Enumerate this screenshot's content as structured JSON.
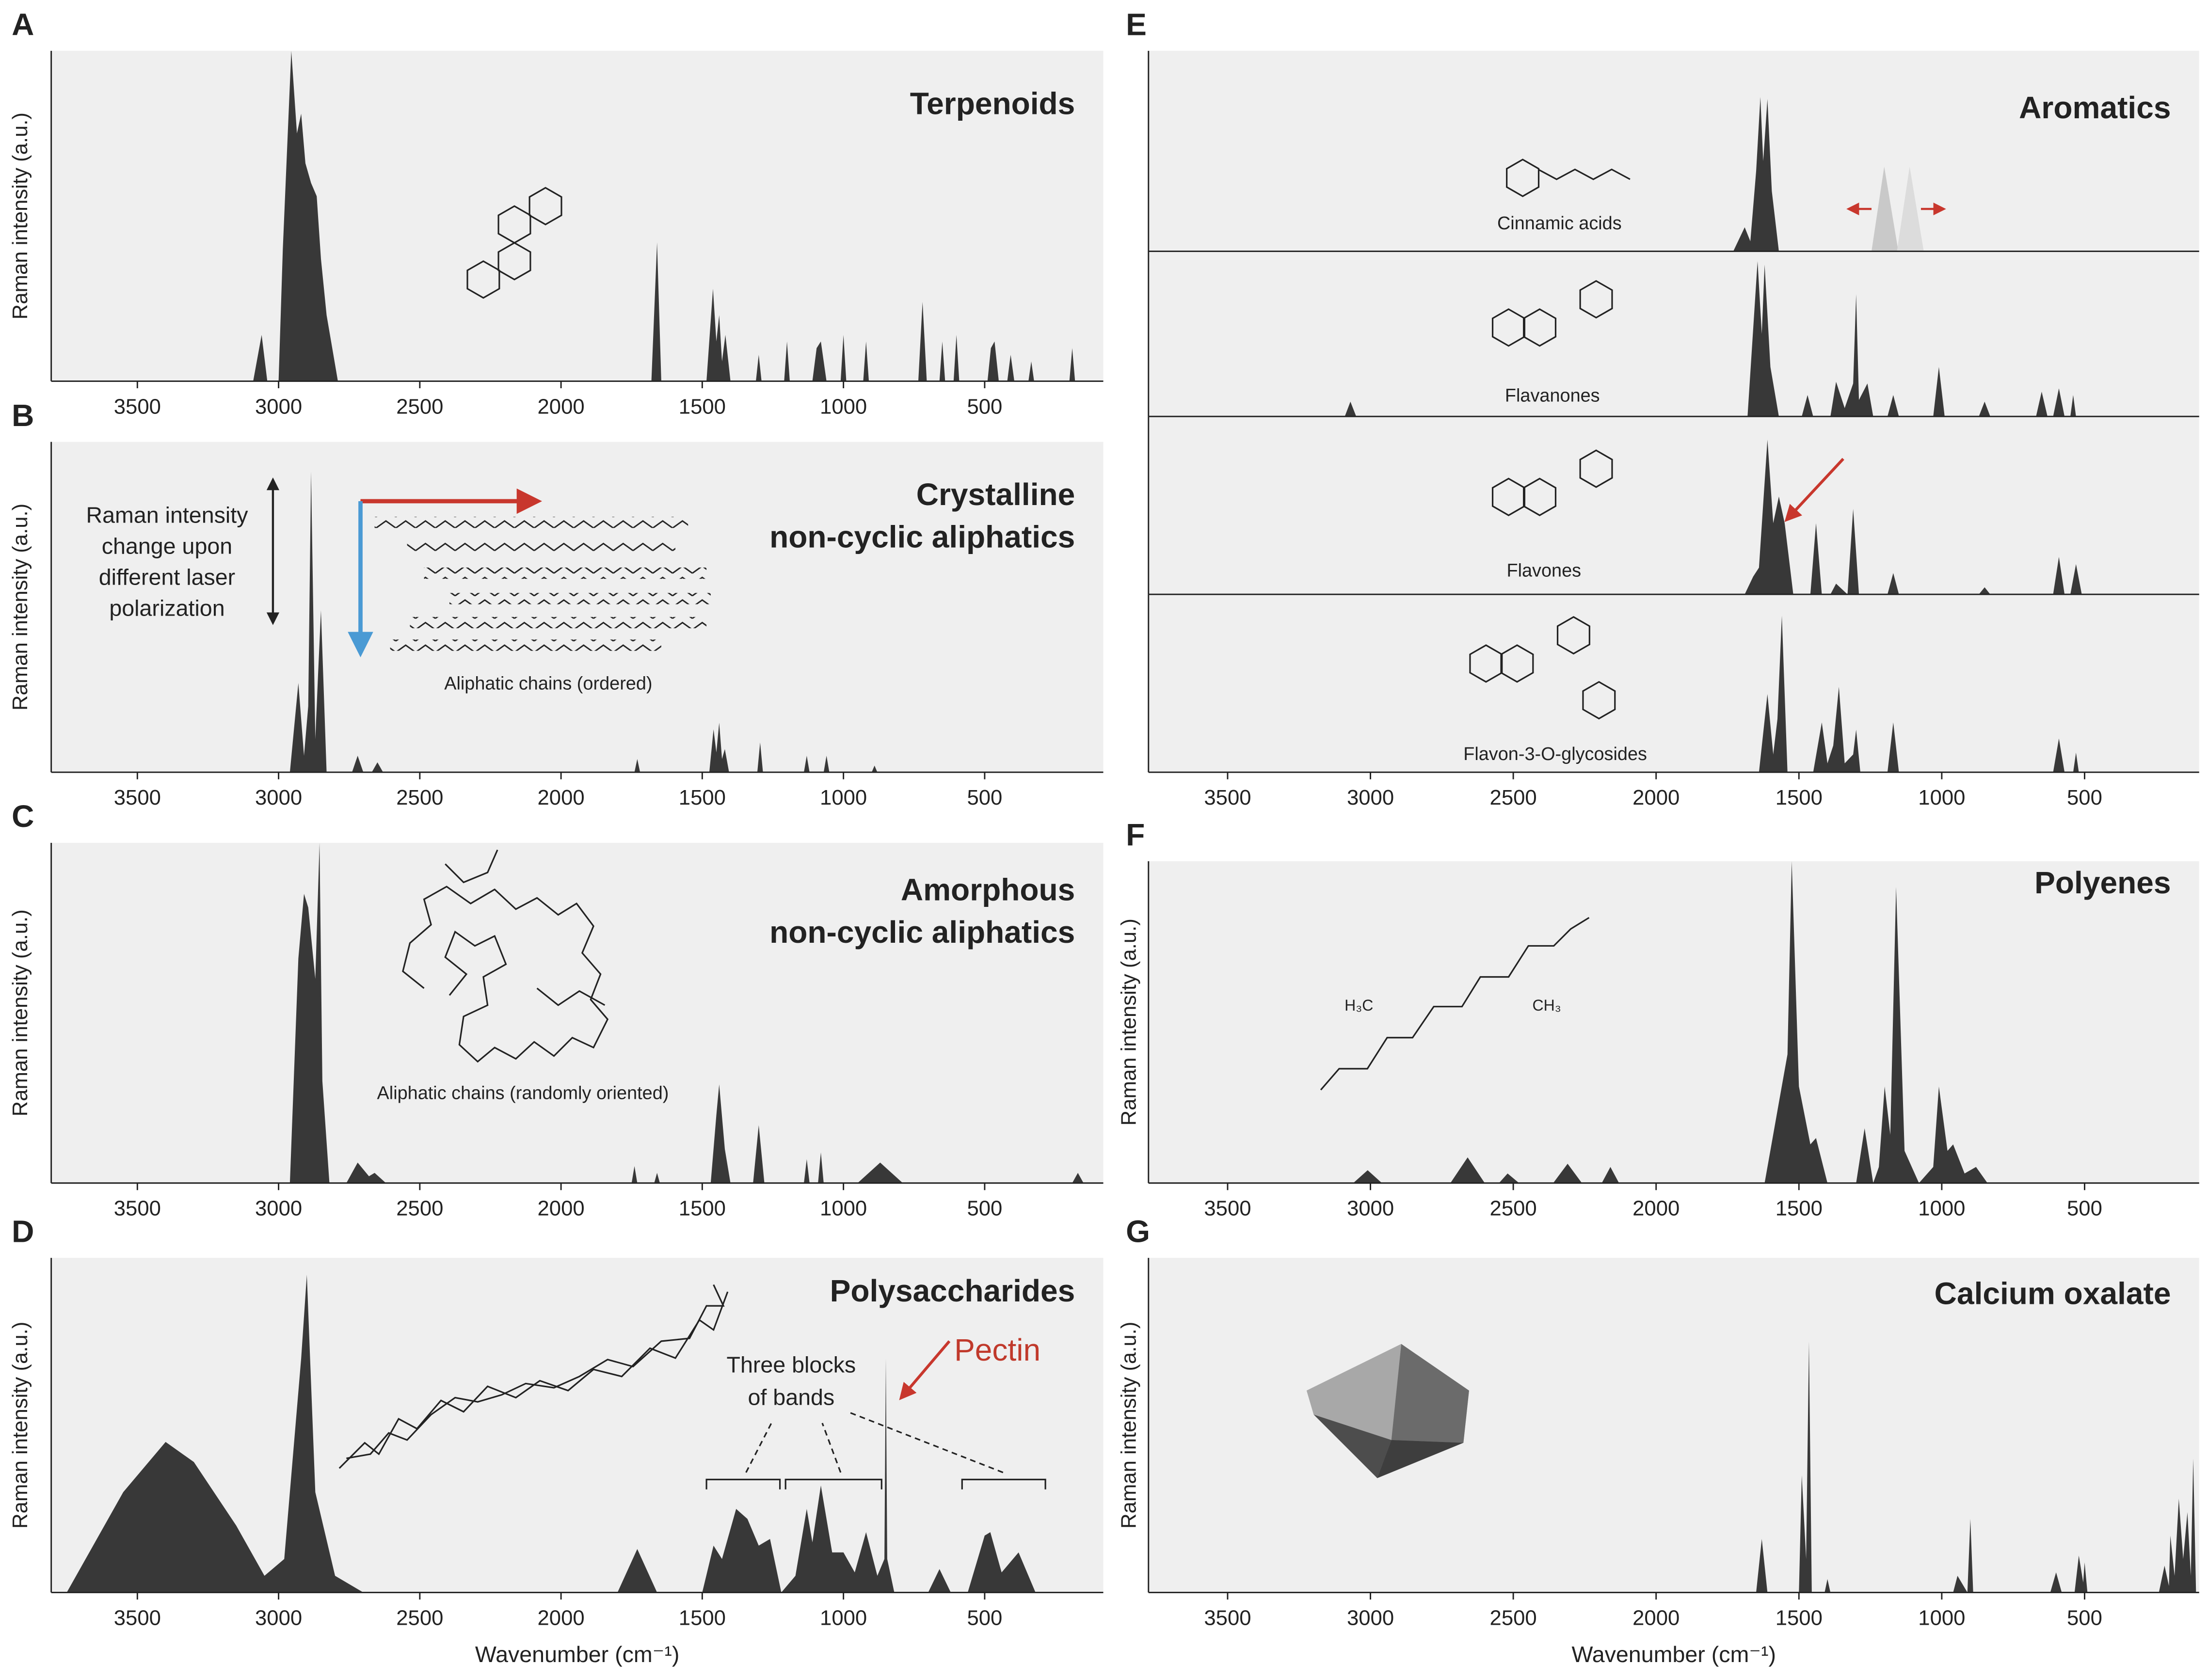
{
  "chart_data": [
    {
      "type": "area",
      "panel": "A",
      "title": "Terpenoids",
      "ylabel": "Raman intensity (a.u.)",
      "color": "#383838",
      "x": [
        3090,
        3060,
        3040,
        3000,
        2985,
        2970,
        2955,
        2935,
        2920,
        2905,
        2885,
        2865,
        2850,
        2830,
        2790,
        1680,
        1660,
        1645,
        1485,
        1462,
        1450,
        1440,
        1430,
        1418,
        1400,
        1310,
        1300,
        1290,
        1210,
        1200,
        1190,
        1110,
        1095,
        1080,
        1060,
        1010,
        1000,
        990,
        930,
        920,
        910,
        735,
        720,
        705,
        660,
        650,
        640,
        610,
        600,
        590,
        490,
        478,
        465,
        450,
        420,
        408,
        395,
        345,
        335,
        325,
        200,
        190,
        180
      ],
      "values": [
        0,
        14,
        0,
        0,
        40,
        70,
        100,
        75,
        81,
        66,
        60,
        56,
        37,
        20,
        0,
        0,
        42,
        0,
        0,
        28,
        12,
        20,
        6,
        14,
        0,
        0,
        8,
        0,
        0,
        12,
        0,
        0,
        10,
        12,
        0,
        0,
        14,
        0,
        0,
        12,
        0,
        0,
        24,
        0,
        0,
        12,
        0,
        0,
        14,
        0,
        0,
        10,
        12,
        0,
        0,
        8,
        0,
        0,
        6,
        0,
        0,
        10,
        0
      ],
      "xlim": [
        3805,
        80
      ],
      "xticks": [
        3500,
        3000,
        2500,
        2000,
        1500,
        1000,
        500
      ],
      "ylim": [
        0,
        100
      ]
    },
    {
      "type": "area",
      "panel": "B",
      "title": [
        "Crystalline",
        "non-cyclic aliphatics"
      ],
      "ylabel": "Raman intensity (a.u.)",
      "color": "#383838",
      "annotations": [
        {
          "text": "Raman intensity"
        },
        {
          "text": "change upon"
        },
        {
          "text": "different laser"
        },
        {
          "text": "polarization"
        },
        {
          "text": "Aliphatic chains (ordered)"
        }
      ],
      "x": [
        2960,
        2930,
        2910,
        2895,
        2885,
        2870,
        2860,
        2850,
        2830,
        2740,
        2720,
        2700,
        2670,
        2650,
        2630,
        1740,
        1730,
        1720,
        1475,
        1460,
        1450,
        1440,
        1430,
        1420,
        1405,
        1305,
        1295,
        1285,
        1140,
        1130,
        1120,
        1070,
        1060,
        1050,
        900,
        890,
        880
      ],
      "values": [
        0,
        27,
        5,
        20,
        91,
        10,
        30,
        49,
        0,
        0,
        5,
        0,
        0,
        3,
        0,
        0,
        4,
        0,
        0,
        13,
        6,
        15,
        4,
        7,
        0,
        0,
        9,
        0,
        0,
        5,
        0,
        0,
        5,
        0,
        0,
        2,
        0
      ],
      "xlim": [
        3805,
        80
      ],
      "xticks": [
        3500,
        3000,
        2500,
        2000,
        1500,
        1000,
        500
      ],
      "ylim": [
        0,
        100
      ]
    },
    {
      "type": "area",
      "panel": "C",
      "title": [
        "Amorphous",
        "non-cyclic aliphatics"
      ],
      "ylabel": "Raman intensity (a.u.)",
      "color": "#383838",
      "annotations": [
        {
          "text": "Aliphatic chains (randomly oriented)"
        }
      ],
      "x": [
        2960,
        2930,
        2910,
        2895,
        2870,
        2855,
        2845,
        2820,
        2760,
        2720,
        2680,
        2660,
        2620,
        1750,
        1740,
        1730,
        1670,
        1660,
        1650,
        1470,
        1450,
        1440,
        1420,
        1400,
        1320,
        1300,
        1280,
        1140,
        1130,
        1120,
        1090,
        1080,
        1070,
        950,
        870,
        790,
        190,
        170,
        150
      ],
      "values": [
        0,
        66,
        85,
        81,
        60,
        100,
        30,
        0,
        0,
        6,
        2,
        3,
        0,
        0,
        5,
        0,
        0,
        3,
        0,
        0,
        20,
        29,
        10,
        0,
        0,
        17,
        0,
        0,
        7,
        0,
        0,
        9,
        0,
        0,
        6,
        0,
        0,
        3,
        0
      ],
      "xlim": [
        3805,
        80
      ],
      "xticks": [
        3500,
        3000,
        2500,
        2000,
        1500,
        1000,
        500
      ],
      "ylim": [
        0,
        100
      ]
    },
    {
      "type": "area",
      "panel": "D",
      "title": "Polysaccharides",
      "ylabel": "Raman intensity (a.u.)",
      "xlabel": "Wavenumber (cm⁻¹)",
      "color": "#383838",
      "annotations": [
        {
          "text": "Three blocks"
        },
        {
          "text": "of bands"
        },
        {
          "text": "Pectin",
          "color": "#c0392b"
        }
      ],
      "x": [
        3750,
        3550,
        3400,
        3300,
        3150,
        3050,
        2980,
        2940,
        2920,
        2900,
        2870,
        2800,
        2700,
        1800,
        1730,
        1660,
        1500,
        1460,
        1430,
        1380,
        1340,
        1300,
        1260,
        1220,
        1170,
        1130,
        1110,
        1080,
        1040,
        1000,
        960,
        920,
        880,
        855,
        850,
        845,
        820,
        700,
        660,
        620,
        560,
        500,
        480,
        440,
        380,
        320
      ],
      "values": [
        0,
        30,
        45,
        39,
        20,
        5,
        10,
        50,
        70,
        95,
        30,
        5,
        0,
        0,
        13,
        0,
        0,
        14,
        10,
        25,
        22,
        14,
        16,
        0,
        5,
        25,
        15,
        32,
        12,
        12,
        6,
        18,
        5,
        10,
        70,
        10,
        0,
        0,
        7,
        0,
        0,
        17,
        18,
        6,
        12,
        0
      ],
      "xlim": [
        3805,
        80
      ],
      "xticks": [
        3500,
        3000,
        2500,
        2000,
        1500,
        1000,
        500
      ],
      "ylim": [
        0,
        100
      ]
    },
    {
      "type": "area",
      "panel": "E",
      "title": "Aromatics",
      "color": "#383838",
      "annotations": [
        {
          "text": "Cinnamic acids"
        }
      ],
      "x": [
        1730,
        1690,
        1670,
        1650,
        1635,
        1625,
        1610,
        1595,
        1570
      ],
      "values": [
        0,
        12,
        5,
        40,
        77,
        45,
        76,
        30,
        0
      ],
      "xlim": [
        3777,
        99
      ],
      "ylim": [
        0,
        100
      ]
    },
    {
      "type": "area",
      "color": "#383838",
      "annotations": [
        {
          "text": "Flavanones"
        }
      ],
      "x": [
        3090,
        3070,
        3050,
        1680,
        1645,
        1630,
        1620,
        1600,
        1570,
        1490,
        1470,
        1450,
        1390,
        1370,
        1340,
        1310,
        1300,
        1290,
        1260,
        1240,
        1190,
        1170,
        1150,
        1030,
        1010,
        990,
        870,
        850,
        830,
        670,
        650,
        630,
        610,
        590,
        570,
        550,
        540,
        530
      ],
      "values": [
        0,
        9,
        0,
        0,
        94,
        50,
        92,
        30,
        0,
        0,
        13,
        0,
        0,
        21,
        5,
        20,
        74,
        10,
        20,
        0,
        0,
        13,
        0,
        0,
        30,
        0,
        0,
        9,
        0,
        0,
        15,
        0,
        0,
        17,
        0,
        0,
        13,
        0
      ],
      "xlim": [
        3777,
        99
      ],
      "ylim": [
        0,
        100
      ]
    },
    {
      "type": "area",
      "color": "#383838",
      "annotations": [
        {
          "text": "Flavones"
        }
      ],
      "x": [
        1690,
        1660,
        1640,
        1610,
        1590,
        1570,
        1550,
        1520,
        1460,
        1440,
        1420,
        1390,
        1370,
        1330,
        1310,
        1290,
        1190,
        1170,
        1150,
        870,
        850,
        830,
        610,
        590,
        570,
        550,
        530,
        510
      ],
      "values": [
        0,
        10,
        15,
        87,
        40,
        55,
        40,
        0,
        0,
        40,
        0,
        0,
        6,
        0,
        48,
        0,
        0,
        12,
        0,
        0,
        4,
        0,
        0,
        21,
        0,
        0,
        17,
        0
      ],
      "xlim": [
        3777,
        99
      ],
      "ylim": [
        0,
        100
      ]
    },
    {
      "type": "area",
      "color": "#383838",
      "annotations": [
        {
          "text": "Flavon-3-O-glycosides"
        }
      ],
      "x": [
        1640,
        1610,
        1590,
        1575,
        1560,
        1540,
        1450,
        1420,
        1400,
        1380,
        1360,
        1340,
        1310,
        1300,
        1285,
        1190,
        1170,
        1150,
        610,
        590,
        570,
        540,
        530,
        520
      ],
      "values": [
        0,
        44,
        10,
        30,
        88,
        0,
        0,
        28,
        5,
        15,
        48,
        5,
        10,
        24,
        0,
        0,
        28,
        0,
        0,
        19,
        0,
        0,
        11,
        0
      ],
      "xlim": [
        3777,
        99
      ],
      "xticks": [
        3500,
        3000,
        2500,
        2000,
        1500,
        1000,
        500
      ],
      "ylim": [
        0,
        100
      ]
    },
    {
      "type": "area",
      "panel": "F",
      "title": "Polyenes",
      "ylabel": "Raman intensity (a.u.)",
      "color": "#383838",
      "annotations": [
        {
          "text": "H₃C"
        },
        {
          "text": "CH₃"
        }
      ],
      "x": [
        3060,
        3010,
        2960,
        2720,
        2660,
        2600,
        2550,
        2520,
        2480,
        2360,
        2310,
        2260,
        2190,
        2160,
        2130,
        1620,
        1570,
        1540,
        1525,
        1500,
        1460,
        1440,
        1400,
        1300,
        1270,
        1240,
        1220,
        1200,
        1180,
        1160,
        1130,
        1080,
        1030,
        1010,
        980,
        960,
        920,
        880,
        840
      ],
      "values": [
        0,
        4,
        0,
        0,
        8,
        0,
        0,
        3,
        0,
        0,
        6,
        0,
        0,
        5,
        0,
        0,
        25,
        40,
        100,
        30,
        12,
        14,
        0,
        0,
        17,
        0,
        5,
        30,
        15,
        92,
        10,
        0,
        5,
        30,
        10,
        12,
        3,
        5,
        0
      ],
      "xlim": [
        3777,
        99
      ],
      "xticks": [
        3500,
        3000,
        2500,
        2000,
        1500,
        1000,
        500
      ],
      "ylim": [
        0,
        100
      ]
    },
    {
      "type": "area",
      "panel": "G",
      "title": "Calcium oxalate",
      "ylabel": "Raman intensity (a.u.)",
      "xlabel": "Wavenumber (cm⁻¹)",
      "color": "#383838",
      "x": [
        1650,
        1630,
        1610,
        1500,
        1490,
        1475,
        1465,
        1455,
        1410,
        1400,
        1390,
        960,
        945,
        910,
        900,
        890,
        620,
        600,
        580,
        535,
        520,
        505,
        500,
        490,
        240,
        220,
        205,
        200,
        185,
        170,
        155,
        140,
        128,
        120,
        110
      ],
      "values": [
        0,
        16,
        0,
        0,
        35,
        10,
        75,
        0,
        0,
        4,
        0,
        0,
        5,
        0,
        22,
        0,
        0,
        6,
        0,
        0,
        11,
        3,
        9,
        0,
        0,
        8,
        2,
        17,
        5,
        28,
        10,
        24,
        5,
        40,
        0
      ],
      "xlim": [
        3777,
        99
      ],
      "xticks": [
        3500,
        3000,
        2500,
        2000,
        1500,
        1000,
        500
      ],
      "ylim": [
        0,
        100
      ]
    }
  ]
}
